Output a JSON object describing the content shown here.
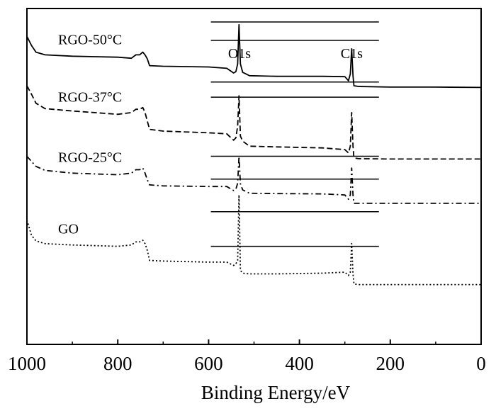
{
  "chart_data": {
    "type": "line",
    "title": "",
    "xlabel": "Binding Energy/eV",
    "ylabel": "",
    "xlim": [
      1000,
      0
    ],
    "x_reversed": true,
    "xticks": [
      1000,
      800,
      600,
      400,
      200,
      0
    ],
    "grid": false,
    "legend": "none",
    "annotations": [
      {
        "text": "O1s",
        "x": 532
      },
      {
        "text": "C1s",
        "x": 285
      }
    ],
    "series": [
      {
        "name": "RGO-50°C",
        "line_style": "solid",
        "x": [
          1000,
          990,
          980,
          960,
          900,
          800,
          770,
          760,
          752,
          745,
          740,
          735,
          730,
          700,
          600,
          560,
          545,
          540,
          536,
          533,
          530,
          525,
          510,
          450,
          350,
          300,
          292,
          288,
          285,
          282,
          280,
          270,
          200,
          100,
          0
        ],
        "y": [
          0.917,
          0.89,
          0.87,
          0.862,
          0.858,
          0.855,
          0.852,
          0.862,
          0.862,
          0.87,
          0.862,
          0.85,
          0.83,
          0.828,
          0.826,
          0.822,
          0.808,
          0.812,
          0.835,
          0.952,
          0.835,
          0.81,
          0.8,
          0.798,
          0.798,
          0.797,
          0.785,
          0.805,
          0.88,
          0.8,
          0.77,
          0.768,
          0.766,
          0.766,
          0.765
        ]
      },
      {
        "name": "RGO-37°C",
        "line_style": "dashed",
        "x": [
          1000,
          990,
          980,
          960,
          900,
          800,
          770,
          760,
          752,
          745,
          740,
          735,
          730,
          700,
          600,
          560,
          545,
          540,
          536,
          533,
          530,
          525,
          510,
          450,
          350,
          300,
          292,
          288,
          285,
          282,
          280,
          270,
          200,
          100,
          0
        ],
        "y": [
          0.77,
          0.745,
          0.718,
          0.702,
          0.695,
          0.685,
          0.69,
          0.7,
          0.7,
          0.705,
          0.69,
          0.665,
          0.64,
          0.635,
          0.63,
          0.627,
          0.608,
          0.615,
          0.65,
          0.74,
          0.62,
          0.605,
          0.59,
          0.588,
          0.585,
          0.58,
          0.57,
          0.59,
          0.69,
          0.59,
          0.555,
          0.553,
          0.552,
          0.552,
          0.552
        ]
      },
      {
        "name": "RGO-25°C",
        "line_style": "dashdot",
        "x": [
          1000,
          990,
          980,
          960,
          900,
          800,
          770,
          760,
          752,
          745,
          740,
          735,
          730,
          700,
          600,
          560,
          545,
          540,
          536,
          533,
          530,
          525,
          510,
          450,
          350,
          300,
          292,
          288,
          285,
          282,
          280,
          270,
          200,
          100,
          0
        ],
        "y": [
          0.56,
          0.545,
          0.53,
          0.518,
          0.51,
          0.505,
          0.51,
          0.52,
          0.52,
          0.525,
          0.51,
          0.49,
          0.475,
          0.472,
          0.47,
          0.47,
          0.458,
          0.462,
          0.48,
          0.56,
          0.478,
          0.46,
          0.45,
          0.449,
          0.448,
          0.445,
          0.432,
          0.445,
          0.525,
          0.445,
          0.42,
          0.42,
          0.42,
          0.42,
          0.42
        ]
      },
      {
        "name": "GO",
        "line_style": "dotted",
        "x": [
          1000,
          990,
          980,
          960,
          900,
          800,
          770,
          760,
          752,
          745,
          740,
          735,
          730,
          700,
          600,
          560,
          545,
          540,
          536,
          533,
          530,
          525,
          510,
          450,
          350,
          300,
          292,
          288,
          285,
          282,
          280,
          270,
          200,
          100,
          0
        ],
        "y": [
          0.37,
          0.325,
          0.308,
          0.3,
          0.296,
          0.292,
          0.296,
          0.305,
          0.305,
          0.31,
          0.3,
          0.28,
          0.25,
          0.248,
          0.245,
          0.245,
          0.235,
          0.24,
          0.25,
          0.445,
          0.22,
          0.212,
          0.21,
          0.21,
          0.212,
          0.215,
          0.205,
          0.215,
          0.3,
          0.21,
          0.18,
          0.178,
          0.178,
          0.178,
          0.178
        ]
      }
    ],
    "reference_lines": [
      {
        "y": 0.96
      },
      {
        "y": 0.905
      },
      {
        "y": 0.781
      },
      {
        "y": 0.736
      },
      {
        "y": 0.56
      },
      {
        "y": 0.492
      },
      {
        "y": 0.395
      },
      {
        "y": 0.292
      }
    ],
    "reference_line_range": [
      595,
      225
    ]
  }
}
